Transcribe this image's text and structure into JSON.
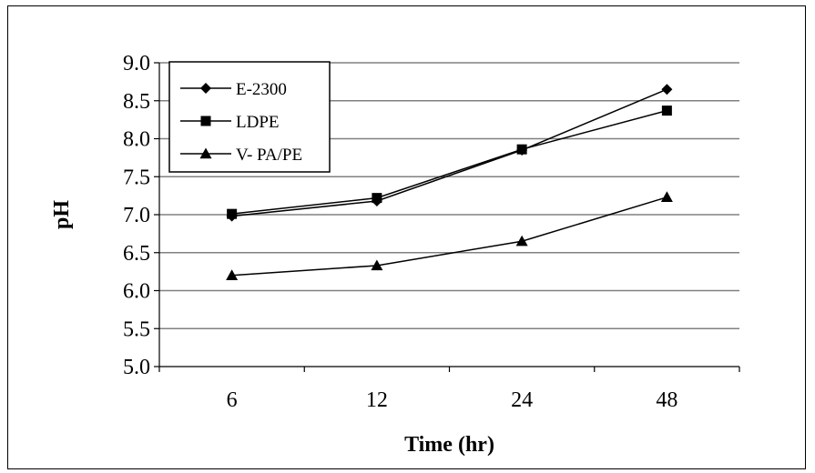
{
  "chart_data": {
    "type": "line",
    "categories": [
      "6",
      "12",
      "24",
      "48"
    ],
    "xlabel": "Time (hr)",
    "ylabel": "pH",
    "ylim": [
      5.0,
      9.0
    ],
    "yticks": [
      "5.0",
      "5.5",
      "6.0",
      "6.5",
      "7.0",
      "7.5",
      "8.0",
      "8.5",
      "9.0"
    ],
    "grid": "horizontal",
    "legend_position": "top-left",
    "series": [
      {
        "name": "E-2300",
        "marker": "diamond",
        "values": [
          6.98,
          7.18,
          7.85,
          8.65
        ]
      },
      {
        "name": "LDPE",
        "marker": "square",
        "values": [
          7.01,
          7.22,
          7.86,
          8.37
        ]
      },
      {
        "name": "V- PA/PE",
        "marker": "triangle",
        "values": [
          6.2,
          6.33,
          6.65,
          7.23
        ]
      }
    ],
    "colors": {
      "line": "#000000",
      "grid": "#808080",
      "background": "#ffffff"
    }
  }
}
